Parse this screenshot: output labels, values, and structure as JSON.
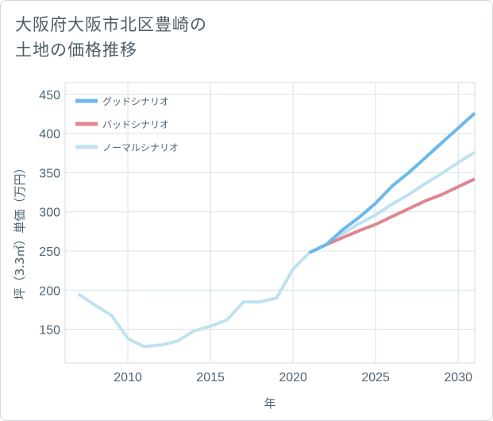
{
  "chart_data": {
    "type": "line",
    "title_line1": "大阪府大阪市北区豊崎の",
    "title_line2": "土地の価格推移",
    "xlabel": "年",
    "ylabel": "坪（3.3㎡）単価（万円）",
    "xlim": [
      2006.2,
      2031
    ],
    "ylim": [
      107,
      465
    ],
    "x_ticks": [
      2010,
      2015,
      2020,
      2025,
      2030
    ],
    "y_ticks": [
      150,
      200,
      250,
      300,
      350,
      400,
      450
    ],
    "legend_position": "top-left",
    "series": [
      {
        "name": "グッドシナリオ",
        "color": "#6bb8ec",
        "points": [
          [
            2021,
            248
          ],
          [
            2022,
            258
          ],
          [
            2023,
            277
          ],
          [
            2024,
            293
          ],
          [
            2025,
            311
          ],
          [
            2026,
            333
          ],
          [
            2027,
            350
          ],
          [
            2028,
            369
          ],
          [
            2029,
            388
          ],
          [
            2030,
            407
          ],
          [
            2031,
            426
          ]
        ]
      },
      {
        "name": "バッドシナリオ",
        "color": "#e0868f",
        "points": [
          [
            2021,
            248
          ],
          [
            2022,
            258
          ],
          [
            2023,
            267
          ],
          [
            2024,
            276
          ],
          [
            2025,
            284
          ],
          [
            2026,
            294
          ],
          [
            2027,
            304
          ],
          [
            2028,
            314
          ],
          [
            2029,
            322
          ],
          [
            2030,
            332
          ],
          [
            2031,
            342
          ]
        ]
      },
      {
        "name": "ノーマルシナリオ",
        "color": "#bfe2f0",
        "points": [
          [
            2007,
            195
          ],
          [
            2008,
            181
          ],
          [
            2009,
            168
          ],
          [
            2010,
            138
          ],
          [
            2011,
            128
          ],
          [
            2012,
            130
          ],
          [
            2013,
            135
          ],
          [
            2014,
            148
          ],
          [
            2015,
            154
          ],
          [
            2016,
            162
          ],
          [
            2017,
            185
          ],
          [
            2018,
            185
          ],
          [
            2019,
            190
          ],
          [
            2020,
            227
          ],
          [
            2021,
            248
          ],
          [
            2022,
            258
          ],
          [
            2023,
            272
          ],
          [
            2024,
            285
          ],
          [
            2025,
            296
          ],
          [
            2026,
            310
          ],
          [
            2027,
            322
          ],
          [
            2028,
            336
          ],
          [
            2029,
            349
          ],
          [
            2030,
            363
          ],
          [
            2031,
            376
          ]
        ]
      }
    ]
  }
}
